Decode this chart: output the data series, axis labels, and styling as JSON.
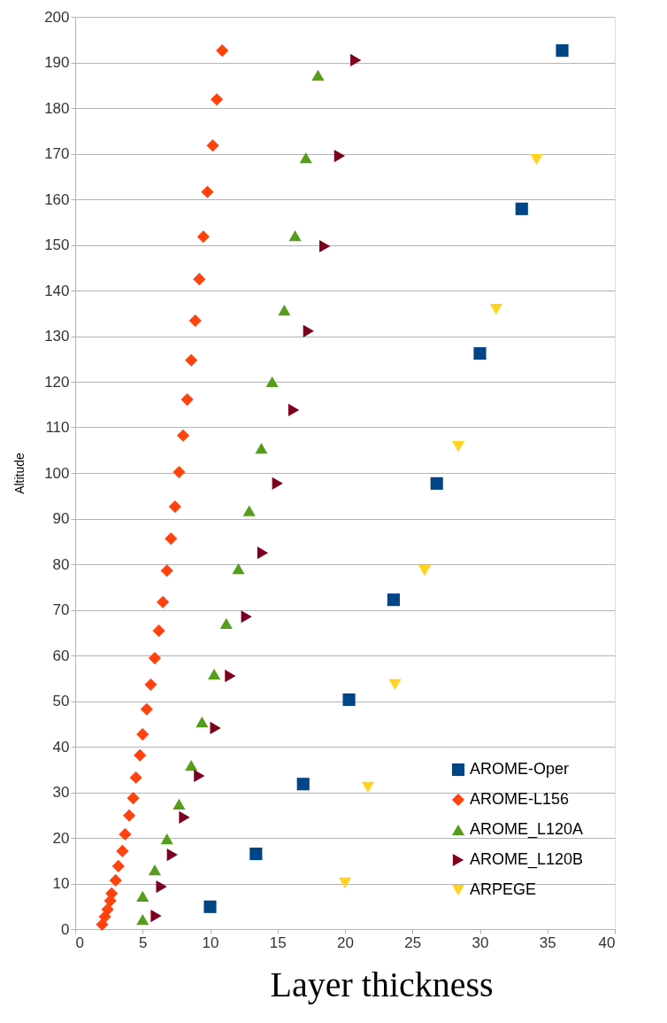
{
  "chart_data": {
    "type": "scatter",
    "xlabel": "Layer thickness",
    "ylabel": "Altitude",
    "xlim": [
      0,
      40
    ],
    "xticks": [
      0,
      5,
      10,
      15,
      20,
      25,
      30,
      35,
      40
    ],
    "ylim": [
      0,
      200
    ],
    "yticks": [
      0,
      10,
      20,
      30,
      40,
      50,
      60,
      70,
      80,
      90,
      100,
      110,
      120,
      130,
      140,
      150,
      160,
      170,
      180,
      190,
      200
    ],
    "grid": "y",
    "legend": "bottom right",
    "series": [
      {
        "name": "AROME-Oper",
        "color": "#004586",
        "marker": "square",
        "x": [
          10.0,
          13.4,
          16.9,
          20.3,
          23.6,
          26.8,
          30.0,
          33.1,
          36.1
        ],
        "values": [
          4.9,
          16.5,
          31.8,
          50.3,
          72.2,
          97.7,
          126.2,
          157.9,
          192.6
        ]
      },
      {
        "name": "AROME-L156",
        "color": "#ff420e",
        "marker": "diamond",
        "x": [
          2.0,
          2.2,
          2.4,
          2.6,
          2.7,
          3.0,
          3.2,
          3.5,
          3.7,
          4.0,
          4.3,
          4.5,
          4.8,
          5.0,
          5.3,
          5.6,
          5.9,
          6.2,
          6.5,
          6.8,
          7.1,
          7.4,
          7.7,
          8.0,
          8.3,
          8.6,
          8.9,
          9.2,
          9.5,
          9.8,
          10.2,
          10.5,
          10.9
        ],
        "values": [
          1.0,
          2.7,
          4.3,
          6.2,
          7.8,
          10.7,
          13.8,
          17.1,
          20.8,
          24.9,
          28.7,
          33.2,
          38.1,
          42.7,
          48.2,
          53.6,
          59.4,
          65.4,
          71.7,
          78.6,
          85.6,
          92.6,
          100.2,
          108.2,
          116.1,
          124.7,
          133.4,
          142.5,
          151.8,
          161.6,
          171.8,
          181.9,
          192.6
        ]
      },
      {
        "name": "AROME_L120A",
        "color": "#579d1c",
        "marker": "triangle",
        "x": [
          5.0,
          5.0,
          5.9,
          6.8,
          7.7,
          8.6,
          9.4,
          10.3,
          11.2,
          12.1,
          12.9,
          13.8,
          14.6,
          15.5,
          16.3,
          17.1,
          18.0
        ],
        "values": [
          2.1,
          7.2,
          13.0,
          19.8,
          27.4,
          35.9,
          45.4,
          55.9,
          67.0,
          79.0,
          91.7,
          105.4,
          120.0,
          135.7,
          152.0,
          169.1,
          187.2
        ]
      },
      {
        "name": "AROME_L120B",
        "color": "#7e0021",
        "marker": "triangle-right",
        "x": [
          6.0,
          6.4,
          7.2,
          8.1,
          9.2,
          10.4,
          11.5,
          12.7,
          13.9,
          15.0,
          16.2,
          17.3,
          18.5,
          19.6,
          20.8
        ],
        "values": [
          2.9,
          9.3,
          16.3,
          24.5,
          33.6,
          44.1,
          55.5,
          68.5,
          82.5,
          97.7,
          113.8,
          131.1,
          149.7,
          169.5,
          190.5
        ]
      },
      {
        "name": "ARPEGE",
        "color": "#ffd320",
        "marker": "triangle-down",
        "x": [
          20.0,
          21.7,
          23.7,
          25.9,
          28.4,
          31.2,
          34.2
        ],
        "values": [
          10.1,
          31.1,
          53.6,
          78.6,
          105.8,
          135.9,
          168.7
        ]
      }
    ]
  }
}
